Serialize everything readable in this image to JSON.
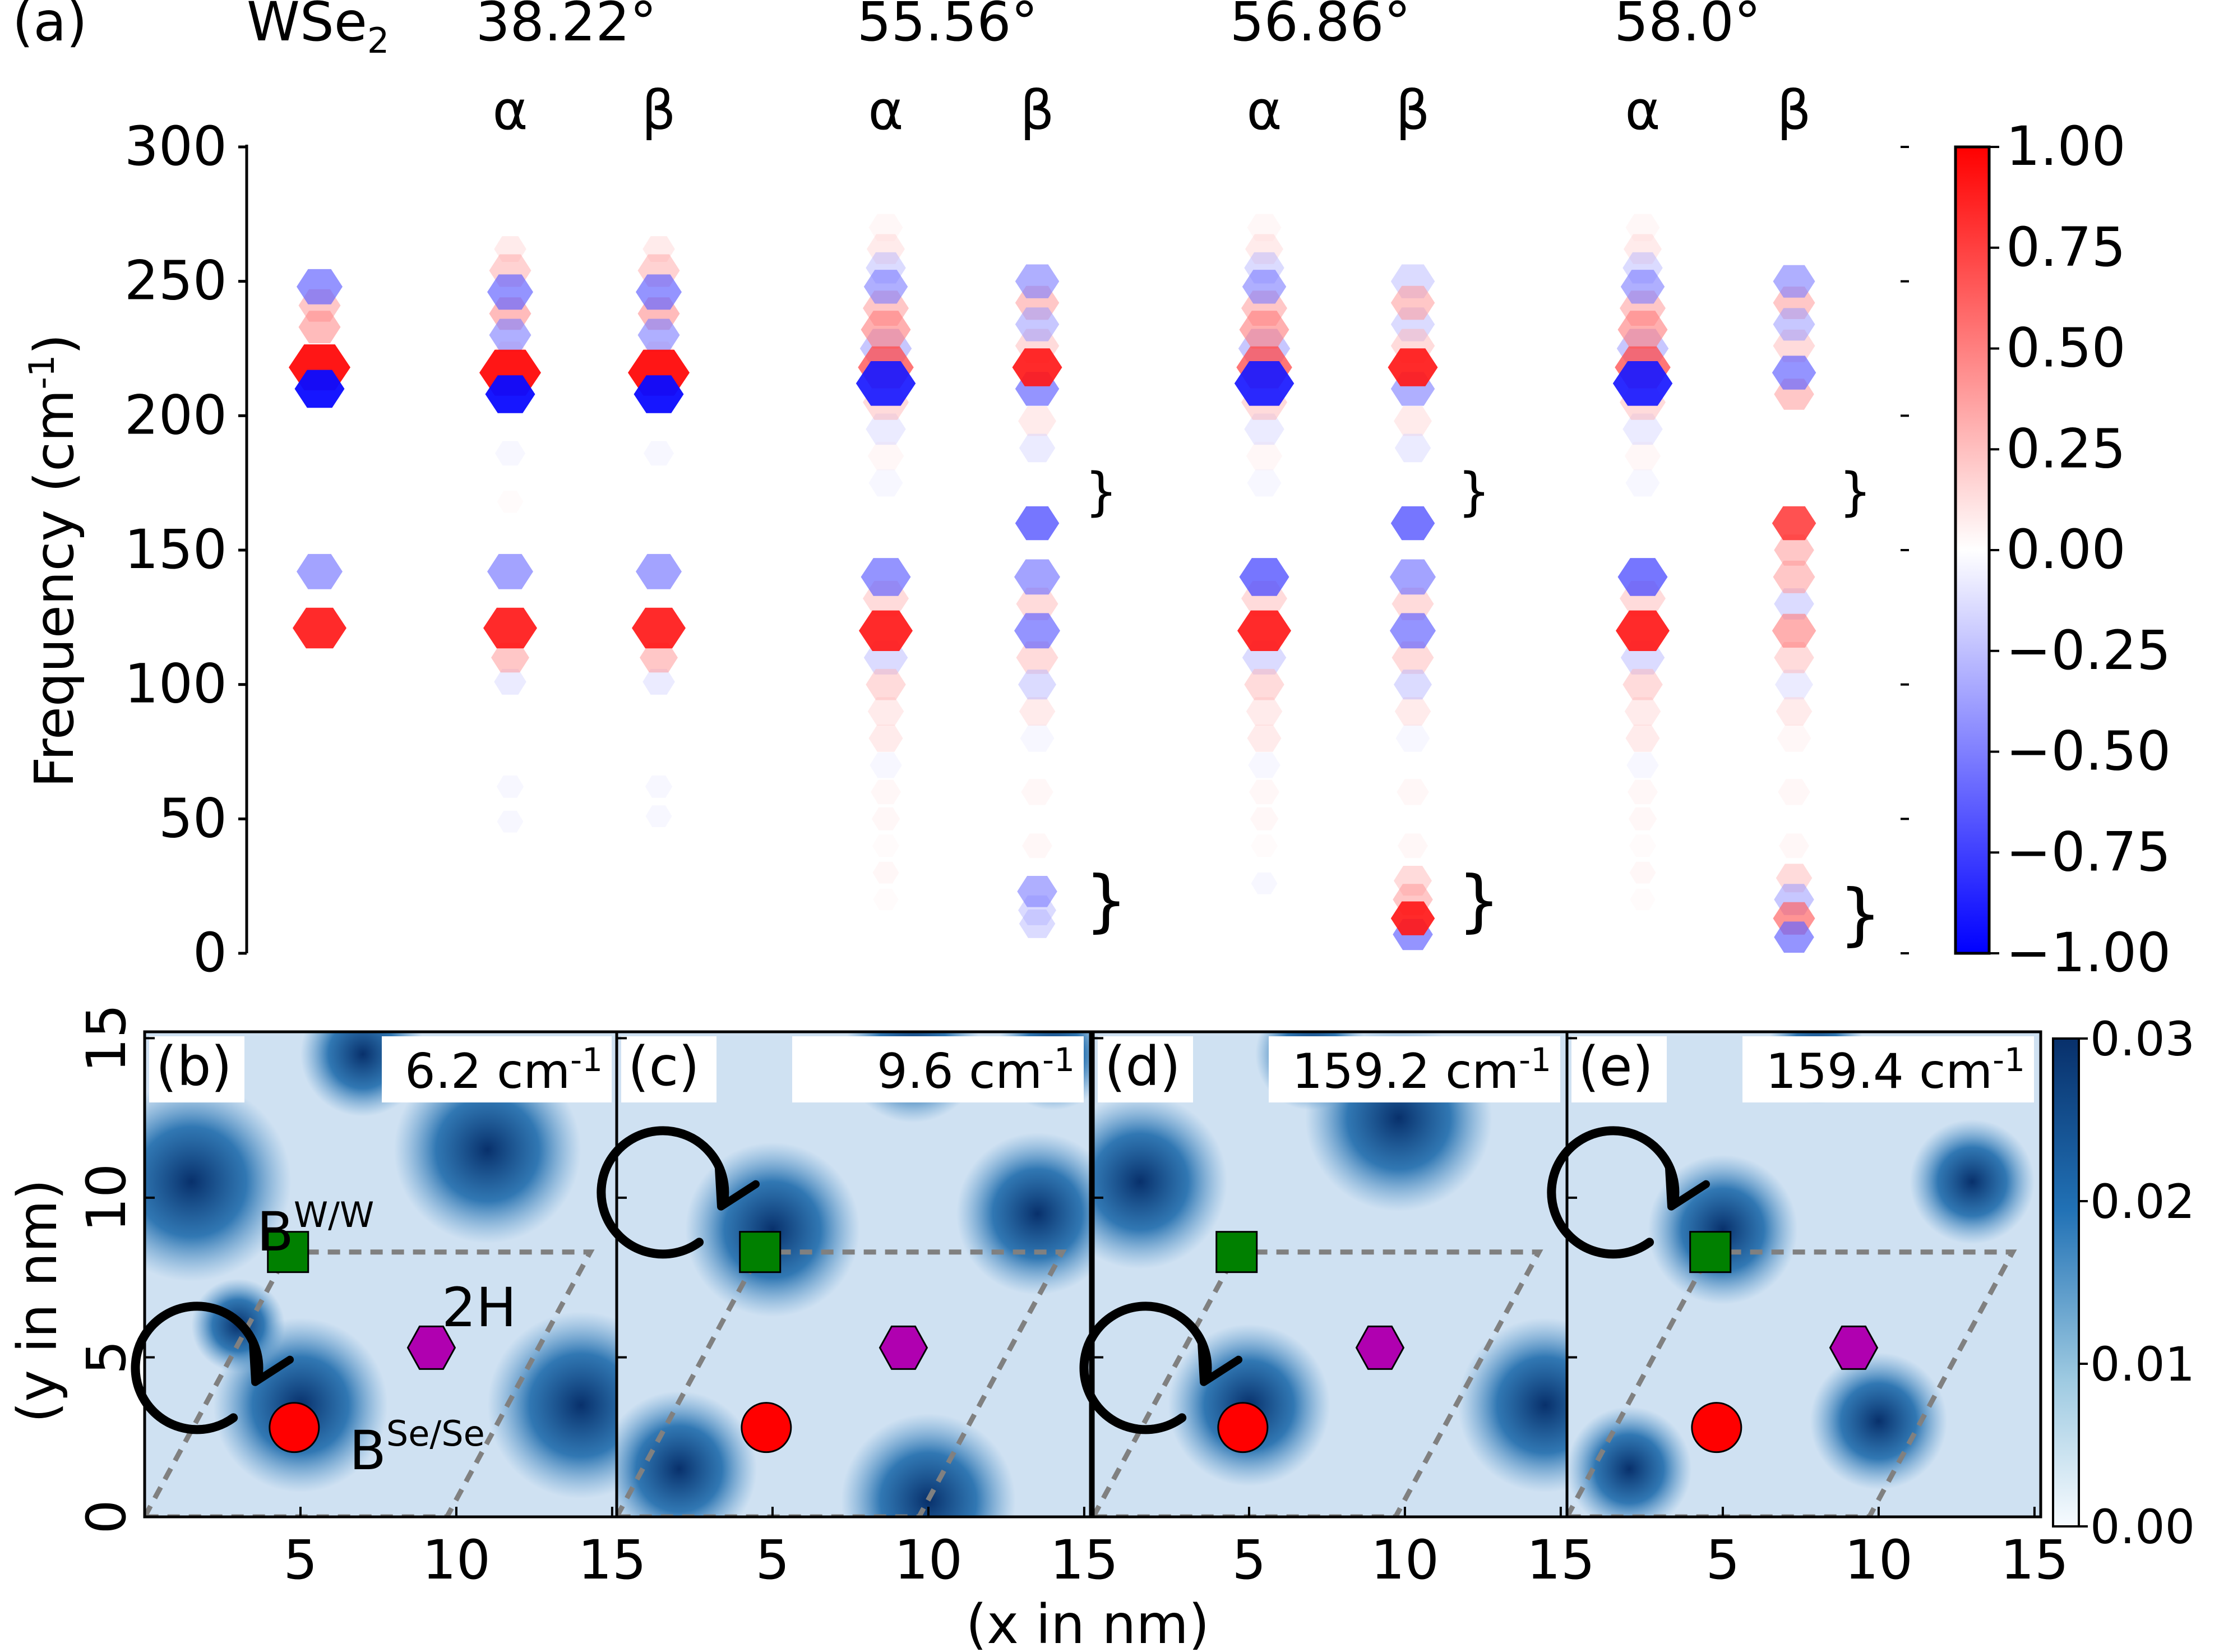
{
  "chart_data": [
    {
      "panel": "(a)",
      "type": "scatter",
      "ylabel": "Frequency (cm",
      "ylabel_sup": "-1",
      "ylabel_close": ")",
      "ylim": [
        0,
        300
      ],
      "yticks": [
        "0",
        "50",
        "100",
        "150",
        "200",
        "250",
        "300"
      ],
      "column_headers": [
        {
          "label": "WSe",
          "sub": "2"
        },
        {
          "label": "38.22°"
        },
        {
          "label": "55.56°"
        },
        {
          "label": "56.86°"
        },
        {
          "label": "58.0°"
        }
      ],
      "columns": [
        {
          "sub": ""
        },
        {
          "sub": "α"
        },
        {
          "sub": "β"
        },
        {
          "sub": "α"
        },
        {
          "sub": "β"
        },
        {
          "sub": "α"
        },
        {
          "sub": "β"
        },
        {
          "sub": "α"
        },
        {
          "sub": "β"
        }
      ],
      "colorbar": {
        "ticks": [
          "1.00",
          "0.75",
          "0.50",
          "0.25",
          "0.00",
          "−0.25",
          "−0.50",
          "−0.75",
          "−1.00"
        ],
        "range": [
          -1,
          1
        ],
        "colors": {
          "low": "#0000ff",
          "mid": "#ffffff",
          "high": "#ff0000"
        }
      },
      "brace_marks": "}",
      "series": [
        {
          "values": [
            [
              248,
              -0.6,
              0.6
            ],
            [
              241,
              0.4,
              0.5
            ],
            [
              233,
              0.45,
              0.5
            ],
            [
              218,
              0.95,
              1.0
            ],
            [
              210,
              -0.95,
              0.7
            ],
            [
              142,
              -0.55,
              0.6
            ],
            [
              121,
              0.9,
              0.8
            ]
          ]
        },
        {
          "values": [
            [
              262,
              0.2,
              0.25
            ],
            [
              254,
              0.35,
              0.5
            ],
            [
              246,
              -0.6,
              0.6
            ],
            [
              238,
              0.45,
              0.5
            ],
            [
              230,
              -0.5,
              0.5
            ],
            [
              222,
              0.2,
              0.4
            ],
            [
              216,
              0.95,
              1.0
            ],
            [
              208,
              -0.95,
              0.7
            ],
            [
              186,
              -0.1,
              0.2
            ],
            [
              168,
              0.05,
              0.1
            ],
            [
              142,
              -0.55,
              0.6
            ],
            [
              121,
              0.9,
              0.8
            ],
            [
              110,
              0.4,
              0.4
            ],
            [
              101,
              -0.2,
              0.25
            ],
            [
              62,
              -0.1,
              0.12
            ],
            [
              49,
              -0.1,
              0.1
            ]
          ]
        },
        {
          "values": [
            [
              262,
              0.2,
              0.25
            ],
            [
              254,
              0.35,
              0.5
            ],
            [
              246,
              -0.6,
              0.6
            ],
            [
              238,
              0.45,
              0.5
            ],
            [
              230,
              -0.5,
              0.5
            ],
            [
              222,
              0.2,
              0.4
            ],
            [
              216,
              0.95,
              1.0
            ],
            [
              208,
              -0.95,
              0.7
            ],
            [
              186,
              -0.1,
              0.2
            ],
            [
              142,
              -0.55,
              0.6
            ],
            [
              121,
              0.9,
              0.8
            ],
            [
              110,
              0.4,
              0.4
            ],
            [
              101,
              -0.2,
              0.25
            ],
            [
              62,
              -0.1,
              0.12
            ],
            [
              51,
              -0.1,
              0.1
            ]
          ]
        },
        {
          "values": [
            [
              270,
              0.1,
              0.3
            ],
            [
              262,
              0.2,
              0.4
            ],
            [
              255,
              -0.3,
              0.45
            ],
            [
              248,
              -0.5,
              0.55
            ],
            [
              240,
              0.4,
              0.6
            ],
            [
              232,
              0.5,
              0.7
            ],
            [
              225,
              -0.4,
              0.75
            ],
            [
              218,
              0.7,
              0.85
            ],
            [
              212,
              -0.9,
              0.95
            ],
            [
              205,
              0.3,
              0.6
            ],
            [
              195,
              -0.2,
              0.45
            ],
            [
              185,
              0.1,
              0.35
            ],
            [
              175,
              -0.1,
              0.3
            ],
            [
              140,
              -0.6,
              0.7
            ],
            [
              132,
              0.3,
              0.6
            ],
            [
              120,
              0.9,
              0.8
            ],
            [
              110,
              -0.3,
              0.55
            ],
            [
              100,
              0.3,
              0.45
            ],
            [
              90,
              0.2,
              0.35
            ],
            [
              80,
              0.2,
              0.3
            ],
            [
              70,
              -0.1,
              0.25
            ],
            [
              60,
              0.1,
              0.2
            ],
            [
              50,
              0.1,
              0.15
            ],
            [
              40,
              0.05,
              0.12
            ],
            [
              30,
              0.1,
              0.1
            ],
            [
              20,
              0.05,
              0.08
            ]
          ]
        },
        {
          "values": [
            [
              250,
              -0.5,
              0.55
            ],
            [
              242,
              0.4,
              0.55
            ],
            [
              234,
              -0.4,
              0.55
            ],
            [
              226,
              0.3,
              0.55
            ],
            [
              218,
              0.9,
              0.7
            ],
            [
              210,
              -0.6,
              0.55
            ],
            [
              198,
              0.2,
              0.4
            ],
            [
              188,
              -0.2,
              0.35
            ],
            [
              160,
              -0.7,
              0.55
            ],
            [
              140,
              -0.55,
              0.6
            ],
            [
              130,
              0.3,
              0.5
            ],
            [
              120,
              -0.6,
              0.6
            ],
            [
              110,
              0.3,
              0.5
            ],
            [
              100,
              -0.3,
              0.4
            ],
            [
              90,
              0.2,
              0.35
            ],
            [
              80,
              -0.1,
              0.3
            ],
            [
              60,
              0.1,
              0.25
            ],
            [
              40,
              0.1,
              0.2
            ],
            [
              23,
              -0.5,
              0.45
            ],
            [
              16,
              -0.3,
              0.4
            ],
            [
              11,
              -0.3,
              0.35
            ]
          ]
        },
        {
          "values": [
            [
              270,
              0.1,
              0.3
            ],
            [
              262,
              0.2,
              0.4
            ],
            [
              255,
              -0.3,
              0.45
            ],
            [
              248,
              -0.5,
              0.55
            ],
            [
              240,
              0.4,
              0.6
            ],
            [
              232,
              0.5,
              0.7
            ],
            [
              225,
              -0.4,
              0.75
            ],
            [
              218,
              0.7,
              0.85
            ],
            [
              212,
              -0.9,
              0.95
            ],
            [
              205,
              0.3,
              0.6
            ],
            [
              195,
              -0.2,
              0.45
            ],
            [
              185,
              0.1,
              0.35
            ],
            [
              175,
              -0.1,
              0.3
            ],
            [
              140,
              -0.7,
              0.7
            ],
            [
              132,
              0.3,
              0.6
            ],
            [
              120,
              0.9,
              0.8
            ],
            [
              110,
              -0.3,
              0.55
            ],
            [
              100,
              0.3,
              0.45
            ],
            [
              90,
              0.2,
              0.35
            ],
            [
              80,
              0.2,
              0.3
            ],
            [
              70,
              -0.1,
              0.25
            ],
            [
              60,
              0.1,
              0.2
            ],
            [
              50,
              0.1,
              0.15
            ],
            [
              40,
              0.05,
              0.12
            ],
            [
              26,
              -0.1,
              0.1
            ]
          ]
        },
        {
          "values": [
            [
              250,
              -0.3,
              0.55
            ],
            [
              242,
              0.4,
              0.55
            ],
            [
              234,
              -0.3,
              0.55
            ],
            [
              226,
              0.3,
              0.55
            ],
            [
              218,
              0.9,
              0.7
            ],
            [
              210,
              -0.5,
              0.55
            ],
            [
              198,
              0.2,
              0.4
            ],
            [
              188,
              -0.2,
              0.35
            ],
            [
              160,
              -0.7,
              0.55
            ],
            [
              140,
              -0.55,
              0.6
            ],
            [
              130,
              0.3,
              0.5
            ],
            [
              120,
              -0.6,
              0.6
            ],
            [
              110,
              0.3,
              0.5
            ],
            [
              100,
              -0.3,
              0.4
            ],
            [
              90,
              0.2,
              0.35
            ],
            [
              80,
              -0.1,
              0.3
            ],
            [
              60,
              0.1,
              0.25
            ],
            [
              40,
              0.1,
              0.2
            ],
            [
              27,
              0.3,
              0.4
            ],
            [
              20,
              0.4,
              0.45
            ],
            [
              13,
              0.9,
              0.55
            ],
            [
              7,
              -0.6,
              0.45
            ]
          ]
        },
        {
          "values": [
            [
              270,
              0.1,
              0.3
            ],
            [
              262,
              0.2,
              0.4
            ],
            [
              255,
              -0.3,
              0.45
            ],
            [
              248,
              -0.5,
              0.55
            ],
            [
              240,
              0.4,
              0.6
            ],
            [
              232,
              0.5,
              0.7
            ],
            [
              225,
              -0.4,
              0.75
            ],
            [
              218,
              0.7,
              0.85
            ],
            [
              212,
              -0.9,
              0.95
            ],
            [
              205,
              0.3,
              0.6
            ],
            [
              195,
              -0.2,
              0.45
            ],
            [
              185,
              0.1,
              0.35
            ],
            [
              175,
              -0.1,
              0.3
            ],
            [
              140,
              -0.7,
              0.7
            ],
            [
              132,
              0.3,
              0.6
            ],
            [
              120,
              0.9,
              0.8
            ],
            [
              110,
              -0.3,
              0.55
            ],
            [
              100,
              0.3,
              0.45
            ],
            [
              90,
              0.2,
              0.35
            ],
            [
              80,
              0.2,
              0.3
            ],
            [
              70,
              -0.1,
              0.25
            ],
            [
              60,
              0.1,
              0.2
            ],
            [
              50,
              0.1,
              0.15
            ],
            [
              40,
              0.05,
              0.12
            ],
            [
              30,
              0.1,
              0.1
            ],
            [
              20,
              0.05,
              0.08
            ]
          ]
        },
        {
          "values": [
            [
              250,
              -0.5,
              0.5
            ],
            [
              242,
              0.4,
              0.5
            ],
            [
              234,
              -0.4,
              0.5
            ],
            [
              226,
              0.3,
              0.5
            ],
            [
              216,
              -0.6,
              0.55
            ],
            [
              208,
              0.4,
              0.45
            ],
            [
              160,
              0.8,
              0.55
            ],
            [
              150,
              0.4,
              0.45
            ],
            [
              140,
              0.4,
              0.5
            ],
            [
              130,
              -0.3,
              0.45
            ],
            [
              120,
              0.5,
              0.55
            ],
            [
              110,
              0.3,
              0.45
            ],
            [
              100,
              -0.2,
              0.4
            ],
            [
              90,
              0.2,
              0.35
            ],
            [
              80,
              0.1,
              0.3
            ],
            [
              60,
              0.1,
              0.25
            ],
            [
              40,
              0.1,
              0.2
            ],
            [
              28,
              0.3,
              0.35
            ],
            [
              20,
              -0.4,
              0.45
            ],
            [
              13,
              0.6,
              0.5
            ],
            [
              6,
              -0.6,
              0.45
            ]
          ]
        }
      ]
    },
    {
      "type": "heatmap",
      "xlabel": "(x in nm)",
      "ylabel": "(y in nm)",
      "xticks": [
        "5",
        "10",
        "15"
      ],
      "yticks": [
        "0",
        "5",
        "10",
        "15"
      ],
      "xlim": [
        0,
        15.2
      ],
      "ylim": [
        0,
        15.2
      ],
      "colorbar": {
        "ticks": [
          "0.03",
          "0.02",
          "0.01",
          "0.00"
        ],
        "range": [
          0,
          0.03
        ],
        "colors": {
          "low": "#ffffff",
          "high": "#08306b"
        }
      },
      "markers": {
        "square": "#008000",
        "circle": "#ff0000",
        "hexagon": "#b000b0"
      },
      "site_labels": {
        "bww": "B",
        "bww_sup": "W/W",
        "bse": "B",
        "bse_sup": "Se/Se",
        "h2": "2H"
      },
      "panels": [
        {
          "tag": "(b)",
          "freq": "6.2 cm",
          "sup": "-1"
        },
        {
          "tag": "(c)",
          "freq": "9.6 cm",
          "sup": "-1"
        },
        {
          "tag": "(d)",
          "freq": "159.2 cm",
          "sup": "-1"
        },
        {
          "tag": "(e)",
          "freq": "159.4 cm",
          "sup": "-1"
        }
      ]
    }
  ]
}
